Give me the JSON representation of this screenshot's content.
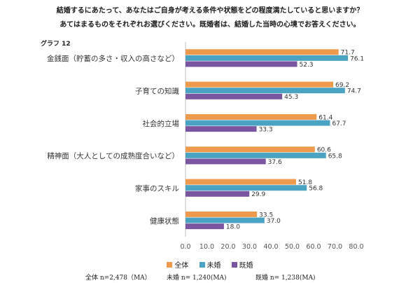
{
  "question_line1": "結婚するにあたって、あなたはご自身が考える条件や状態をどの程度満たしていると思いますか？",
  "question_line2": "あてはまるものをそれぞれお選びください。既婚者は、結婚した当時の心境でお答えください。",
  "graph_label": "グラフ 12",
  "chart_data": {
    "type": "bar",
    "orientation": "horizontal",
    "categories": [
      "金銭面（貯蓄の多さ・収入の高さなど）",
      "子育ての知識",
      "社会的立場",
      "精神面（大人としての成熟度合いなど）",
      "家事のスキル",
      "健康状態"
    ],
    "series": [
      {
        "name": "全体",
        "color": "#ee9a4d",
        "values": [
          71.7,
          69.2,
          61.4,
          60.6,
          51.8,
          33.5
        ]
      },
      {
        "name": "未婚",
        "color": "#4ba3c3",
        "values": [
          76.1,
          74.7,
          67.7,
          65.8,
          56.8,
          37.0
        ]
      },
      {
        "name": "既婚",
        "color": "#7a55a0",
        "values": [
          52.3,
          45.3,
          33.3,
          37.6,
          29.9,
          18.0
        ]
      }
    ],
    "xlim": [
      0,
      80
    ],
    "xticks": [
      "0.0",
      "10.0",
      "20.0",
      "30.0",
      "40.0",
      "50.0",
      "60.0",
      "70.0",
      "80.0"
    ],
    "grid": false,
    "legend_position": "bottom"
  },
  "notes": [
    "全体 n=2,478（MA）",
    "未婚 n= 1,240(MA)",
    "既婚 n= 1,238(MA)"
  ]
}
